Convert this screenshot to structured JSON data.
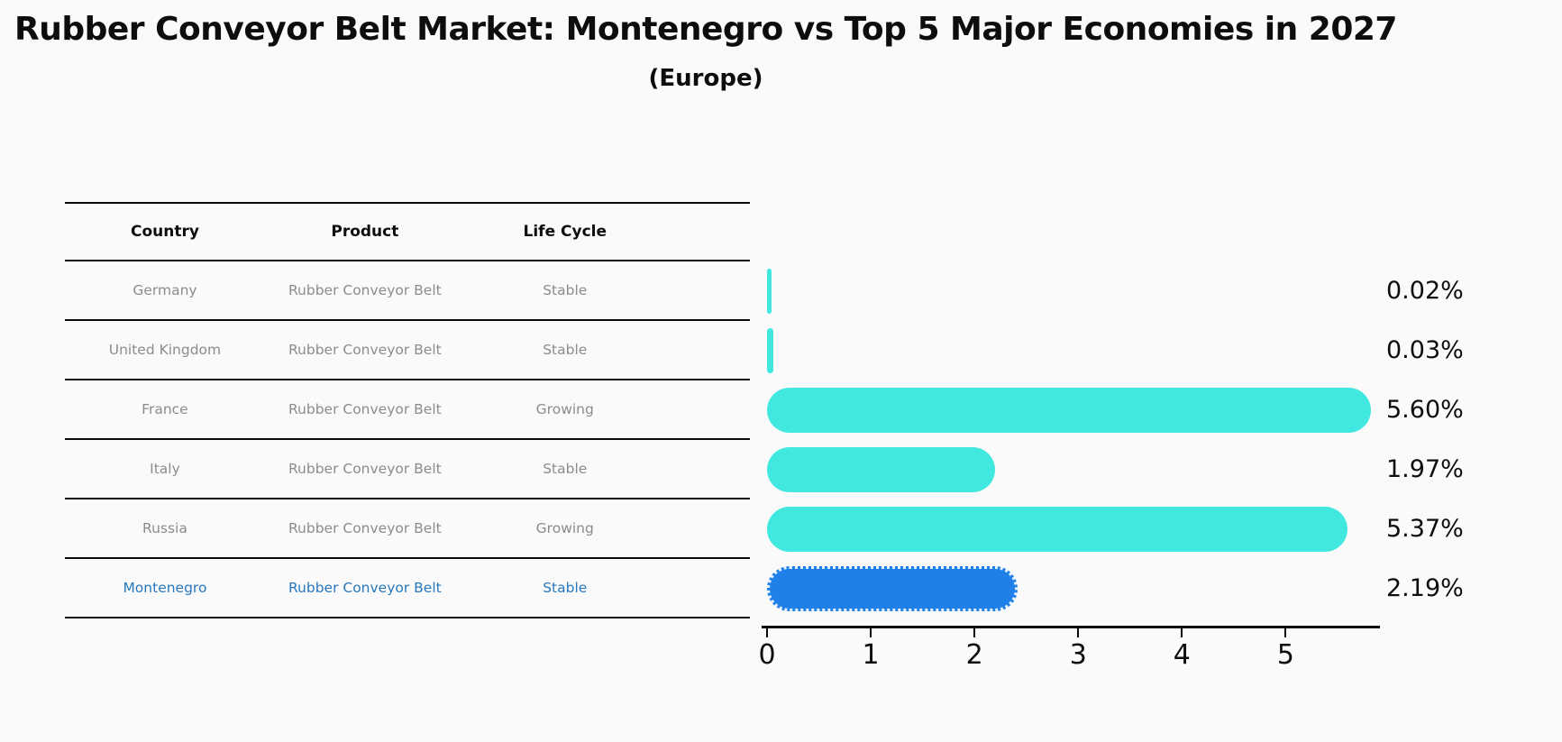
{
  "title": "Rubber Conveyor Belt Market: Montenegro vs Top 5 Major Economies in 2027",
  "subtitle": "(Europe)",
  "table": {
    "headers": [
      "Country",
      "Product",
      "Life Cycle"
    ],
    "rows": [
      {
        "country": "Germany",
        "product": "Rubber Conveyor Belt",
        "life_cycle": "Stable",
        "highlight": false
      },
      {
        "country": "United Kingdom",
        "product": "Rubber Conveyor Belt",
        "life_cycle": "Stable",
        "highlight": false
      },
      {
        "country": "France",
        "product": "Rubber Conveyor Belt",
        "life_cycle": "Growing",
        "highlight": false
      },
      {
        "country": "Italy",
        "product": "Rubber Conveyor Belt",
        "life_cycle": "Stable",
        "highlight": false
      },
      {
        "country": "Russia",
        "product": "Rubber Conveyor Belt",
        "life_cycle": "Growing",
        "highlight": false
      },
      {
        "country": "Montenegro",
        "product": "Rubber Conveyor Belt",
        "life_cycle": "Stable",
        "highlight": true
      }
    ]
  },
  "chart_data": {
    "type": "bar",
    "orientation": "horizontal",
    "categories": [
      "Germany",
      "United Kingdom",
      "France",
      "Italy",
      "Russia",
      "Montenegro"
    ],
    "values": [
      0.02,
      0.03,
      5.6,
      1.97,
      5.37,
      2.19
    ],
    "labels": [
      "0.02%",
      "0.03%",
      "5.60%",
      "1.97%",
      "5.37%",
      "2.19%"
    ],
    "xlim": [
      0,
      5.9
    ],
    "xticks": [
      0,
      1,
      2,
      3,
      4,
      5
    ],
    "grid": false,
    "legend": "none",
    "highlight_index": 5
  },
  "colors": {
    "bar": "#40e8e0",
    "highlight_bar": "#1e80e8",
    "highlight_text": "#2878be",
    "table_text": "#8c8c8c",
    "axis": "#0a0a0a",
    "background": "#fafafa"
  }
}
